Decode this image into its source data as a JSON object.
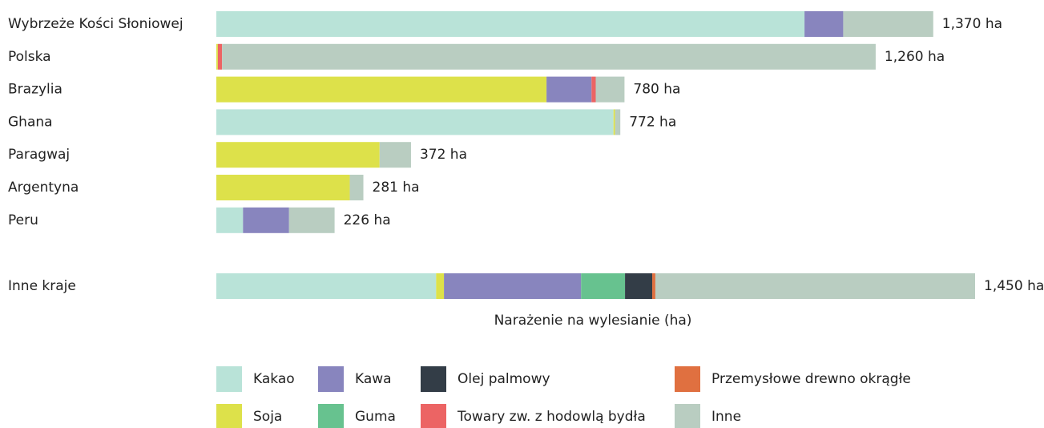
{
  "chart_data": {
    "type": "stacked-bar-horizontal",
    "xlabel": "Narażenie na wylesianie (ha)",
    "categories": [
      "Wybrzeże Kości Słoniowej",
      "Polska",
      "Brazylia",
      "Ghana",
      "Paragwaj",
      "Argentyna",
      "Peru",
      "Inne kraje"
    ],
    "xlim": [
      0,
      1450
    ],
    "series": [
      {
        "name": "Kakao",
        "color": "#b9e3d8",
        "values": [
          1124,
          0,
          0,
          759,
          0,
          0,
          51,
          420
        ]
      },
      {
        "name": "Soja",
        "color": "#dde14a",
        "values": [
          0,
          3,
          631,
          3,
          312,
          255,
          0,
          15
        ]
      },
      {
        "name": "Kawa",
        "color": "#8885be",
        "values": [
          74,
          0,
          86,
          0,
          0,
          0,
          88,
          262
        ]
      },
      {
        "name": "Guma",
        "color": "#67c28f",
        "values": [
          0,
          0,
          0,
          0,
          0,
          0,
          0,
          84
        ]
      },
      {
        "name": "Olej palmowy",
        "color": "#333d47",
        "values": [
          0,
          0,
          0,
          0,
          0,
          0,
          0,
          52
        ]
      },
      {
        "name": "Towary zw. z hodowlą bydła",
        "color": "#ec6464",
        "values": [
          0,
          8,
          8,
          0,
          0,
          0,
          0,
          0
        ]
      },
      {
        "name": "Przemysłowe drewno okrągłe",
        "color": "#e07040",
        "values": [
          0,
          0,
          0,
          0,
          0,
          0,
          0,
          6
        ]
      },
      {
        "name": "Inne",
        "color": "#b9cdc1",
        "values": [
          172,
          1249,
          55,
          10,
          60,
          26,
          87,
          611
        ]
      }
    ],
    "totals": [
      1370,
      1260,
      780,
      772,
      372,
      281,
      226,
      1450
    ],
    "total_labels": [
      "1,370 ha",
      "1,260 ha",
      "780 ha",
      "772 ha",
      "372 ha",
      "281 ha",
      "226 ha",
      "1,450 ha"
    ]
  }
}
